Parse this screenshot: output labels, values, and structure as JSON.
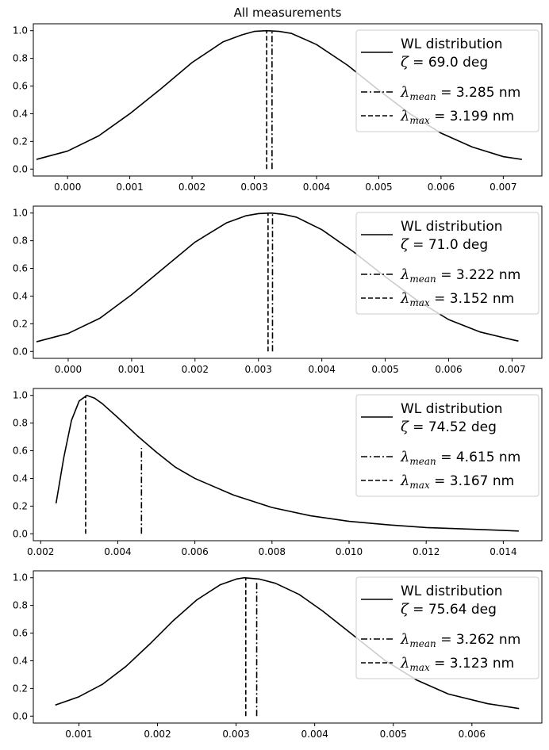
{
  "figure_title": "All measurements",
  "chart_data": [
    {
      "type": "line",
      "title": "",
      "xlabel": "",
      "ylabel": "",
      "xlim": [
        -0.00055,
        0.00762
      ],
      "ylim": [
        -0.05,
        1.05
      ],
      "xticks": [
        "0.000",
        "0.001",
        "0.002",
        "0.003",
        "0.004",
        "0.005",
        "0.006",
        "0.007"
      ],
      "yticks": [
        "0.0",
        "0.2",
        "0.4",
        "0.6",
        "0.8",
        "1.0"
      ],
      "grid": false,
      "legend_position": "top-right",
      "series": [
        {
          "name": "WL distribution",
          "style": "solid",
          "x": [
            -0.0005,
            0.0,
            0.0005,
            0.001,
            0.0015,
            0.002,
            0.0025,
            0.0028,
            0.003,
            0.0032,
            0.0034,
            0.0036,
            0.004,
            0.0045,
            0.005,
            0.0055,
            0.006,
            0.0065,
            0.007,
            0.0073
          ],
          "y": [
            0.07,
            0.13,
            0.24,
            0.4,
            0.58,
            0.77,
            0.92,
            0.97,
            0.995,
            1.0,
            0.995,
            0.98,
            0.9,
            0.75,
            0.57,
            0.4,
            0.26,
            0.16,
            0.09,
            0.07
          ]
        },
        {
          "name": "λ_mean = 3.285 nm",
          "style": "dashdot",
          "x": [
            0.003285,
            0.003285
          ],
          "y": [
            0.0,
            1.0
          ]
        },
        {
          "name": "λ_max = 3.199 nm",
          "style": "dashed",
          "x": [
            0.003199,
            0.003199
          ],
          "y": [
            0.0,
            1.0
          ]
        }
      ],
      "legend": {
        "dist_label": "WL distribution",
        "zeta_symbol": "ζ",
        "zeta_value": " = 69.0 deg",
        "mean_symbol": "λ",
        "mean_sub": "mean",
        "mean_value": " = 3.285 nm",
        "max_symbol": "λ",
        "max_sub": "max",
        "max_value": " = 3.199 nm"
      }
    },
    {
      "type": "line",
      "title": "",
      "xlabel": "",
      "ylabel": "",
      "xlim": [
        -0.00055,
        0.00747
      ],
      "ylim": [
        -0.05,
        1.05
      ],
      "xticks": [
        "0.000",
        "0.001",
        "0.002",
        "0.003",
        "0.004",
        "0.005",
        "0.006",
        "0.007"
      ],
      "yticks": [
        "0.0",
        "0.2",
        "0.4",
        "0.6",
        "0.8",
        "1.0"
      ],
      "grid": false,
      "legend_position": "top-right",
      "series": [
        {
          "name": "WL distribution",
          "style": "solid",
          "x": [
            -0.0005,
            0.0,
            0.0005,
            0.001,
            0.0015,
            0.002,
            0.0025,
            0.0028,
            0.003,
            0.0032,
            0.0034,
            0.0036,
            0.004,
            0.0045,
            0.005,
            0.0055,
            0.006,
            0.0065,
            0.007,
            0.0071
          ],
          "y": [
            0.07,
            0.13,
            0.24,
            0.41,
            0.6,
            0.79,
            0.93,
            0.98,
            0.996,
            1.0,
            0.99,
            0.97,
            0.88,
            0.72,
            0.54,
            0.37,
            0.23,
            0.14,
            0.085,
            0.075
          ]
        },
        {
          "name": "λ_mean = 3.222 nm",
          "style": "dashdot",
          "x": [
            0.003222,
            0.003222
          ],
          "y": [
            0.0,
            1.0
          ]
        },
        {
          "name": "λ_max = 3.152 nm",
          "style": "dashed",
          "x": [
            0.003152,
            0.003152
          ],
          "y": [
            0.0,
            1.0
          ]
        }
      ],
      "legend": {
        "dist_label": "WL distribution",
        "zeta_symbol": "ζ",
        "zeta_value": " = 71.0 deg",
        "mean_symbol": "λ",
        "mean_sub": "mean",
        "mean_value": " = 3.222 nm",
        "max_symbol": "λ",
        "max_sub": "max",
        "max_value": " = 3.152 nm"
      }
    },
    {
      "type": "line",
      "title": "",
      "xlabel": "",
      "ylabel": "",
      "xlim": [
        0.00181,
        0.015
      ],
      "ylim": [
        -0.05,
        1.05
      ],
      "xticks": [
        "0.002",
        "0.004",
        "0.006",
        "0.008",
        "0.010",
        "0.012",
        "0.014"
      ],
      "yticks": [
        "0.0",
        "0.2",
        "0.4",
        "0.6",
        "0.8",
        "1.0"
      ],
      "grid": false,
      "legend_position": "top-right",
      "series": [
        {
          "name": "WL distribution",
          "style": "solid",
          "x": [
            0.0024,
            0.0026,
            0.0028,
            0.003,
            0.0032,
            0.0034,
            0.0036,
            0.004,
            0.0045,
            0.005,
            0.0055,
            0.006,
            0.007,
            0.008,
            0.009,
            0.01,
            0.011,
            0.012,
            0.013,
            0.0144
          ],
          "y": [
            0.22,
            0.55,
            0.82,
            0.96,
            1.0,
            0.98,
            0.94,
            0.84,
            0.71,
            0.59,
            0.48,
            0.4,
            0.28,
            0.19,
            0.13,
            0.09,
            0.065,
            0.045,
            0.035,
            0.02
          ]
        },
        {
          "name": "λ_mean = 4.615 nm",
          "style": "dashdot",
          "x": [
            0.004615,
            0.004615
          ],
          "y": [
            0.0,
            0.62
          ]
        },
        {
          "name": "λ_max = 3.167 nm",
          "style": "dashed",
          "x": [
            0.003167,
            0.003167
          ],
          "y": [
            0.0,
            1.0
          ]
        }
      ],
      "legend": {
        "dist_label": "WL distribution",
        "zeta_symbol": "ζ",
        "zeta_value": " = 74.52 deg",
        "mean_symbol": "λ",
        "mean_sub": "mean",
        "mean_value": " = 4.615 nm",
        "max_symbol": "λ",
        "max_sub": "max",
        "max_value": " = 3.167 nm"
      }
    },
    {
      "type": "line",
      "title": "",
      "xlabel": "",
      "ylabel": "",
      "xlim": [
        0.00042,
        0.00689
      ],
      "ylim": [
        -0.05,
        1.05
      ],
      "xticks": [
        "0.001",
        "0.002",
        "0.003",
        "0.004",
        "0.005",
        "0.006"
      ],
      "yticks": [
        "0.0",
        "0.2",
        "0.4",
        "0.6",
        "0.8",
        "1.0"
      ],
      "grid": false,
      "legend_position": "top-right",
      "series": [
        {
          "name": "WL distribution",
          "style": "solid",
          "x": [
            0.0007,
            0.001,
            0.0013,
            0.0016,
            0.0019,
            0.0022,
            0.0025,
            0.0028,
            0.003,
            0.0031,
            0.0033,
            0.0035,
            0.0038,
            0.0041,
            0.0045,
            0.0049,
            0.0053,
            0.0057,
            0.0062,
            0.0066
          ],
          "y": [
            0.08,
            0.14,
            0.23,
            0.36,
            0.52,
            0.69,
            0.84,
            0.95,
            0.99,
            1.0,
            0.99,
            0.96,
            0.88,
            0.76,
            0.58,
            0.4,
            0.26,
            0.16,
            0.09,
            0.055
          ]
        },
        {
          "name": "λ_mean = 3.262 nm",
          "style": "dashdot",
          "x": [
            0.003262,
            0.003262
          ],
          "y": [
            0.0,
            0.97
          ]
        },
        {
          "name": "λ_max = 3.123 nm",
          "style": "dashed",
          "x": [
            0.003123,
            0.003123
          ],
          "y": [
            0.0,
            1.0
          ]
        }
      ],
      "legend": {
        "dist_label": "WL distribution",
        "zeta_symbol": "ζ",
        "zeta_value": " = 75.64 deg",
        "mean_symbol": "λ",
        "mean_sub": "mean",
        "mean_value": " = 3.262 nm",
        "max_symbol": "λ",
        "max_sub": "max",
        "max_value": " = 3.123 nm"
      }
    }
  ]
}
